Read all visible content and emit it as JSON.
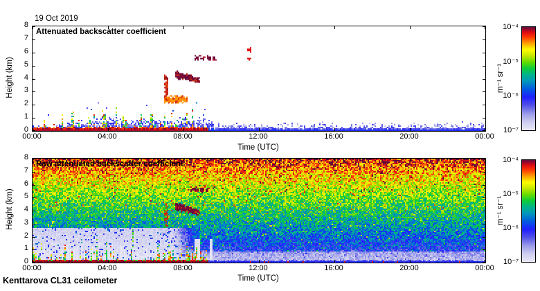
{
  "page": {
    "date_label": "19 Oct 2019",
    "footer": "Kenttarova CL31 ceilometer",
    "background_color": "#ffffff",
    "text_color": "#000000"
  },
  "colormap": {
    "description": "log-scaled backscatter colormap, low=white-lavender high=dark maroon",
    "stops": [
      [
        0.0,
        "#e9e9f7"
      ],
      [
        0.08,
        "#cdcdf0"
      ],
      [
        0.16,
        "#9b9be9"
      ],
      [
        0.24,
        "#5252e8"
      ],
      [
        0.32,
        "#1f1fff"
      ],
      [
        0.4,
        "#005ce0"
      ],
      [
        0.48,
        "#0099b8"
      ],
      [
        0.54,
        "#00b488"
      ],
      [
        0.6,
        "#0ecc3a"
      ],
      [
        0.66,
        "#64dc00"
      ],
      [
        0.72,
        "#c3e600"
      ],
      [
        0.78,
        "#fdfd00"
      ],
      [
        0.84,
        "#ffa300"
      ],
      [
        0.9,
        "#ff3c00"
      ],
      [
        0.95,
        "#dc0a14"
      ],
      [
        1.0,
        "#5e0a3c"
      ]
    ]
  },
  "chart_data": [
    {
      "type": "heatmap",
      "panel": "attenuated",
      "title": "Attenuated backscatter coefficient",
      "xlabel": "Time (UTC)",
      "ylabel": "Height (km)",
      "x_ticks": [
        "00:00",
        "04:00",
        "08:00",
        "12:00",
        "16:00",
        "20:00",
        "00:00"
      ],
      "x_range_hours": [
        0,
        24
      ],
      "y_ticks": [
        "0",
        "1",
        "2",
        "3",
        "4",
        "5",
        "6",
        "7",
        "8"
      ],
      "ylim_km": [
        0,
        8
      ],
      "colorbar_ticks": [
        "10⁻⁴",
        "10⁻⁵",
        "10⁻⁶",
        "10⁻⁷"
      ],
      "colorbar_unit": "m⁻¹ sr⁻¹",
      "value_scale": "log10 backscatter, 1e-7 to 1e-4",
      "features": {
        "surface_signal_hours": [
          0,
          9.3
        ],
        "boundary_layer_top_km": [
          0.28,
          1.05
        ],
        "aerosol_spike_hours": [
          0,
          8.8
        ],
        "spike_max_km": 3.0,
        "spike_dense_hours": [
          4.5,
          8.2
        ],
        "residual_layer_hours": [
          9.6,
          24
        ],
        "residual_top_km": 0.45,
        "clouds": [
          {
            "hours": [
              6.98,
              7.12
            ],
            "center_km": [
              3.45,
              3.45
            ],
            "thick_km": [
              1.8,
              1.8
            ],
            "palette": [
              "#cc2810",
              "#e04818",
              "#8a1030"
            ],
            "n": 70
          },
          {
            "hours": [
              6.95,
              8.15
            ],
            "center_km": [
              2.32,
              2.4
            ],
            "thick_km": [
              0.55,
              0.38
            ],
            "palette": [
              "#ff9500",
              "#ff6a00",
              "#d02818"
            ],
            "n": 240
          },
          {
            "hours": [
              7.55,
              8.78
            ],
            "center_km": [
              4.25,
              3.82
            ],
            "thick_km": [
              0.55,
              0.33
            ],
            "palette": [
              "#6e0a3c",
              "#901028",
              "#c83018"
            ],
            "n": 260
          },
          {
            "hours": [
              8.45,
              9.7
            ],
            "center_km": [
              5.55,
              5.5
            ],
            "thick_km": [
              0.36,
              0.28
            ],
            "palette": [
              "#6e0a3c",
              "#a01030"
            ],
            "n": 110,
            "broken": true
          },
          {
            "hours": [
              11.35,
              11.55
            ],
            "center_km": [
              6.15,
              6.15
            ],
            "thick_km": [
              0.26,
              0.26
            ],
            "palette": [
              "#e01010"
            ],
            "n": 14
          },
          {
            "hours": [
              11.35,
              11.5
            ],
            "center_km": [
              5.45,
              5.45
            ],
            "thick_km": [
              0.2,
              0.2
            ],
            "palette": [
              "#e01010"
            ],
            "n": 9
          }
        ]
      }
    },
    {
      "type": "heatmap",
      "panel": "raw",
      "title": "Raw attenuated backscatter coefficient",
      "xlabel": "Time (UTC)",
      "ylabel": "Height (km)",
      "x_ticks": [
        "00:00",
        "04:00",
        "08:00",
        "12:00",
        "16:00",
        "20:00",
        "00:00"
      ],
      "x_range_hours": [
        0,
        24
      ],
      "y_ticks": [
        "0",
        "1",
        "2",
        "3",
        "4",
        "5",
        "6",
        "7",
        "8"
      ],
      "ylim_km": [
        0,
        8
      ],
      "colorbar_ticks": [
        "10⁻⁴",
        "10⁻⁵",
        "10⁻⁶",
        "10⁻⁷"
      ],
      "colorbar_unit": "m⁻¹ sr⁻¹",
      "value_scale": "log10 backscatter, 1e-7 to 1e-4",
      "features": {
        "noise_profile_km_value": [
          [
            0,
            0.22
          ],
          [
            0.5,
            0.25
          ],
          [
            1,
            0.31
          ],
          [
            2,
            0.41
          ],
          [
            3,
            0.5
          ],
          [
            4,
            0.575
          ],
          [
            5,
            0.655
          ],
          [
            6,
            0.74
          ],
          [
            7,
            0.83
          ],
          [
            8,
            0.93
          ]
        ],
        "night_clean_below_km": 2.7,
        "sunrise_transition_hours": [
          7.3,
          8.9
        ],
        "surface_signal_hours": [
          0,
          9.3
        ],
        "white_streak_hours": [
          8.62,
          8.78,
          9.42
        ],
        "green_streak_hours": [
          5.3,
          8.85
        ],
        "clouds": [
          {
            "hours": [
              7.55,
              8.78
            ],
            "center_km": [
              4.25,
              3.82
            ],
            "thick_km": [
              0.6,
              0.4
            ],
            "palette": [
              "#6e0a3c",
              "#901028",
              "#c83018"
            ],
            "n": 300
          },
          {
            "hours": [
              8.2,
              9.3
            ],
            "center_km": [
              5.6,
              5.5
            ],
            "thick_km": [
              0.4,
              0.3
            ],
            "palette": [
              "#6e0a3c",
              "#a01030",
              "#d04010"
            ],
            "n": 140,
            "broken": true
          },
          {
            "hours": [
              6.98,
              7.12
            ],
            "center_km": [
              3.45,
              3.45
            ],
            "thick_km": [
              1.8,
              1.8
            ],
            "palette": [
              "#cc2810",
              "#30a030"
            ],
            "n": 50
          }
        ]
      }
    }
  ]
}
